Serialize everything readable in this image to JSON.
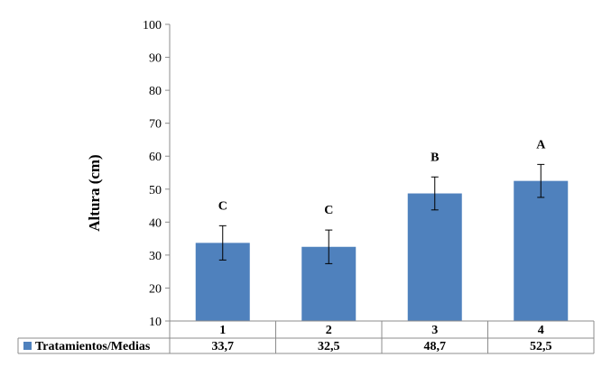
{
  "chart_data": {
    "type": "bar",
    "categories": [
      "1",
      "2",
      "3",
      "4"
    ],
    "series": [
      {
        "name": "Tratamientos/Medias",
        "values": [
          33.7,
          32.5,
          48.7,
          52.5
        ],
        "value_labels": [
          "33,7",
          "32,5",
          "48,7",
          "52,5"
        ],
        "error": [
          5.2,
          5.1,
          5.0,
          5.0
        ],
        "significance": [
          "C",
          "C",
          "B",
          "A"
        ],
        "color": "#4f81bd"
      }
    ],
    "ylabel": "Altura (cm)",
    "xlabel": "",
    "ylim": [
      10,
      100
    ],
    "yticks": [
      10,
      20,
      30,
      40,
      50,
      60,
      70,
      80,
      90,
      100
    ],
    "grid": false,
    "legend": "data-table"
  }
}
